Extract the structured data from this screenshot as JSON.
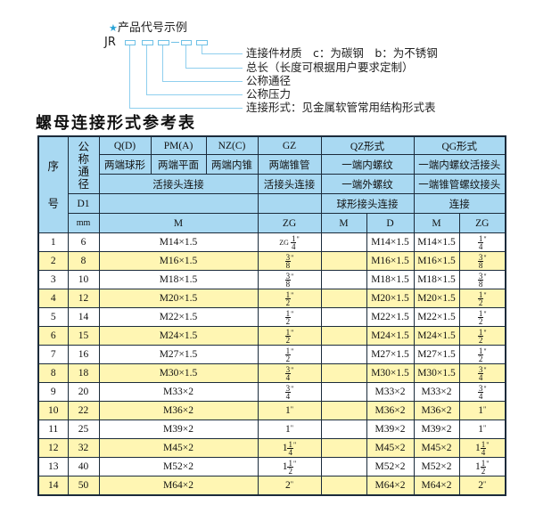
{
  "diagram": {
    "heading": "产品代号示例",
    "code_prefix": "JR",
    "labels": [
      "连接件材质　c：为碳钢　b：为不锈钢",
      "总长（长度可根据用户要求定制）",
      "公称通径",
      "公称压力",
      "连接形式：见金属软管常用结构形式表"
    ]
  },
  "table_title": "螺母连接形式参考表",
  "colors": {
    "header_bg": "#a9d9f2",
    "alt_row_bg": "#fff6b3",
    "accent": "#29a3d6"
  },
  "header": {
    "seq": "序号",
    "seq_top": "序",
    "seq_bottom": "号",
    "nominal": "公称通径",
    "d1": "D1",
    "mm": "mm",
    "row1": [
      "Q(D)",
      "PM(A)",
      "NZ(C)",
      "GZ",
      "QZ形式",
      "QG形式"
    ],
    "row2": [
      "两端球形",
      "两端平面",
      "两端内锥",
      "两端锥管",
      "一端内螺纹",
      "一端内螺纹活接头"
    ],
    "row3": [
      "活接头连接",
      "活接头连接",
      "一端外螺纹",
      "一端锥管螺纹接头"
    ],
    "row4": [
      "球形接头连接",
      "连接"
    ],
    "row5": [
      "M",
      "ZG",
      "M",
      "D",
      "M",
      "ZG"
    ]
  },
  "rows": [
    {
      "no": "1",
      "d": "6",
      "m": "M14×1.5",
      "gz": {
        "pre": "ZG",
        "w": "",
        "n": "1",
        "d": "4"
      },
      "qz_d": "M14×1.5",
      "qg_m": "M14×1.5",
      "qg_zg": {
        "w": "",
        "n": "1",
        "d": "4"
      }
    },
    {
      "no": "2",
      "d": "8",
      "m": "M16×1.5",
      "gz": {
        "w": "",
        "n": "3",
        "d": "8"
      },
      "qz_d": "M16×1.5",
      "qg_m": "M16×1.5",
      "qg_zg": {
        "w": "",
        "n": "3",
        "d": "8"
      }
    },
    {
      "no": "3",
      "d": "10",
      "m": "M18×1.5",
      "gz": {
        "w": "",
        "n": "3",
        "d": "8"
      },
      "qz_d": "M18×1.5",
      "qg_m": "M18×1.5",
      "qg_zg": {
        "w": "",
        "n": "3",
        "d": "8"
      }
    },
    {
      "no": "4",
      "d": "12",
      "m": "M20×1.5",
      "gz": {
        "w": "",
        "n": "1",
        "d": "2"
      },
      "qz_d": "M20×1.5",
      "qg_m": "M20×1.5",
      "qg_zg": {
        "w": "",
        "n": "1",
        "d": "2"
      }
    },
    {
      "no": "5",
      "d": "14",
      "m": "M22×1.5",
      "gz": {
        "w": "",
        "n": "1",
        "d": "2"
      },
      "qz_d": "M22×1.5",
      "qg_m": "M22×1.5",
      "qg_zg": {
        "w": "",
        "n": "1",
        "d": "2"
      }
    },
    {
      "no": "6",
      "d": "15",
      "m": "M24×1.5",
      "gz": {
        "w": "",
        "n": "1",
        "d": "2"
      },
      "qz_d": "M24×1.5",
      "qg_m": "M24×1.5",
      "qg_zg": {
        "w": "",
        "n": "1",
        "d": "2"
      }
    },
    {
      "no": "7",
      "d": "16",
      "m": "M27×1.5",
      "gz": {
        "w": "",
        "n": "1",
        "d": "2"
      },
      "qz_d": "M27×1.5",
      "qg_m": "M27×1.5",
      "qg_zg": {
        "w": "",
        "n": "1",
        "d": "2"
      }
    },
    {
      "no": "8",
      "d": "18",
      "m": "M30×1.5",
      "gz": {
        "w": "",
        "n": "3",
        "d": "4"
      },
      "qz_d": "M30×1.5",
      "qg_m": "M30×1.5",
      "qg_zg": {
        "w": "",
        "n": "3",
        "d": "4"
      }
    },
    {
      "no": "9",
      "d": "20",
      "m": "M33×2",
      "gz": {
        "w": "",
        "n": "3",
        "d": "4"
      },
      "qz_d": "M33×2",
      "qg_m": "M33×2",
      "qg_zg": {
        "w": "",
        "n": "3",
        "d": "4"
      }
    },
    {
      "no": "10",
      "d": "22",
      "m": "M36×2",
      "gz": {
        "w": "1"
      },
      "qz_d": "M36×2",
      "qg_m": "M36×2",
      "qg_zg": {
        "w": "1"
      }
    },
    {
      "no": "11",
      "d": "25",
      "m": "M39×2",
      "gz": {
        "w": "1"
      },
      "qz_d": "M39×2",
      "qg_m": "M39×2",
      "qg_zg": {
        "w": "1"
      }
    },
    {
      "no": "12",
      "d": "32",
      "m": "M45×2",
      "gz": {
        "w": "1",
        "n": "1",
        "d": "4"
      },
      "qz_d": "M45×2",
      "qg_m": "M45×2",
      "qg_zg": {
        "w": "1",
        "n": "1",
        "d": "4"
      }
    },
    {
      "no": "13",
      "d": "40",
      "m": "M52×2",
      "gz": {
        "w": "1",
        "n": "1",
        "d": "2"
      },
      "qz_d": "M52×2",
      "qg_m": "M52×2",
      "qg_zg": {
        "w": "1",
        "n": "1",
        "d": "2"
      }
    },
    {
      "no": "14",
      "d": "50",
      "m": "M64×2",
      "gz": {
        "w": "2"
      },
      "qz_d": "M64×2",
      "qg_m": "M64×2",
      "qg_zg": {
        "w": "2"
      }
    }
  ]
}
